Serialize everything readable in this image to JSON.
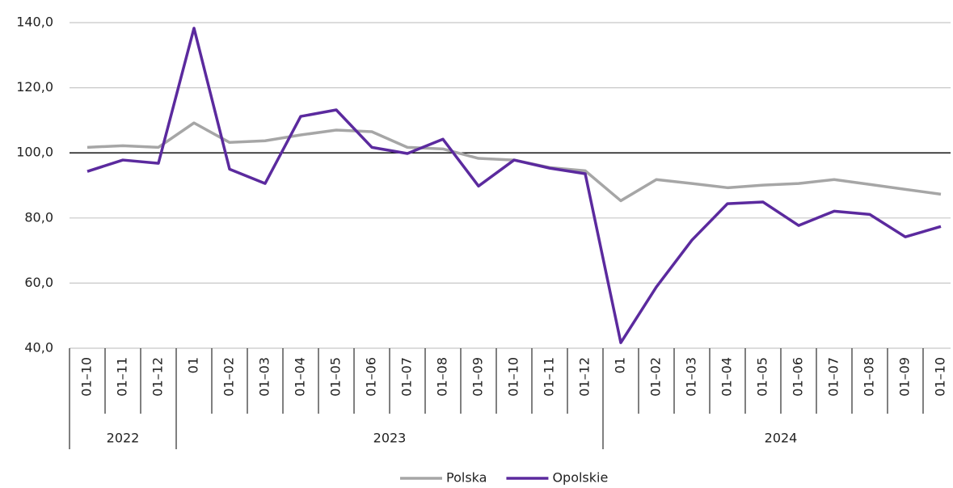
{
  "chart_data": {
    "type": "line",
    "groups": [
      {
        "name": "2022",
        "categories": [
          "01–10",
          "01–11",
          "01–12"
        ]
      },
      {
        "name": "2023",
        "categories": [
          "01",
          "01–02",
          "01–03",
          "01–04",
          "01–05",
          "01–06",
          "01–07",
          "01–08",
          "01–09",
          "01–10",
          "01–11",
          "01–12"
        ]
      },
      {
        "name": "2024",
        "categories": [
          "01",
          "01–02",
          "01–03",
          "01–04",
          "01–05",
          "01–06",
          "01–07",
          "01–08",
          "01–09",
          "01–10"
        ]
      }
    ],
    "series": [
      {
        "name": "Polska",
        "color": "#a6a6a6",
        "values": [
          101.7,
          102.2,
          101.7,
          109.2,
          103.2,
          103.7,
          105.5,
          107,
          106.5,
          101.7,
          101.2,
          98.3,
          97.8,
          95.5,
          94.5,
          85.3,
          91.8,
          90.6,
          89.3,
          90.1,
          90.6,
          91.8,
          90.3,
          88.8,
          87.3
        ]
      },
      {
        "name": "Opolskie",
        "color": "#5b2a9e",
        "values": [
          94.3,
          97.8,
          96.8,
          138.3,
          95,
          90.6,
          111.2,
          113.2,
          101.7,
          99.8,
          104.2,
          89.8,
          97.8,
          95.3,
          93.6,
          41.7,
          58.8,
          73.2,
          84.4,
          84.9,
          77.7,
          82.1,
          81.1,
          74.2,
          77.4
        ]
      }
    ],
    "ylim": [
      40,
      140
    ],
    "yticks": [
      {
        "value": 40,
        "label": "40,0"
      },
      {
        "value": 60,
        "label": "60,0"
      },
      {
        "value": 80,
        "label": "80,0"
      },
      {
        "value": 100,
        "label": "100,0"
      },
      {
        "value": 120,
        "label": "120,0"
      },
      {
        "value": 140,
        "label": "140,0"
      }
    ],
    "reference_line": 100,
    "grid": true
  }
}
